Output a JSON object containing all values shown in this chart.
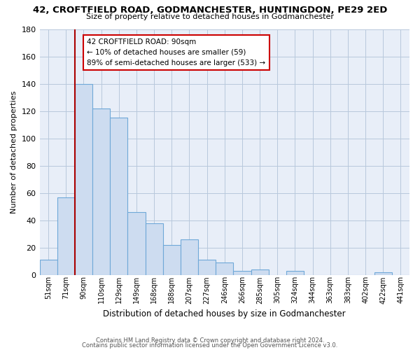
{
  "title": "42, CROFTFIELD ROAD, GODMANCHESTER, HUNTINGDON, PE29 2ED",
  "subtitle": "Size of property relative to detached houses in Godmanchester",
  "xlabel": "Distribution of detached houses by size in Godmanchester",
  "ylabel": "Number of detached properties",
  "bar_labels": [
    "51sqm",
    "71sqm",
    "90sqm",
    "110sqm",
    "129sqm",
    "149sqm",
    "168sqm",
    "188sqm",
    "207sqm",
    "227sqm",
    "246sqm",
    "266sqm",
    "285sqm",
    "305sqm",
    "324sqm",
    "344sqm",
    "363sqm",
    "383sqm",
    "402sqm",
    "422sqm",
    "441sqm"
  ],
  "bar_values": [
    11,
    57,
    140,
    122,
    115,
    46,
    38,
    22,
    26,
    11,
    9,
    3,
    4,
    0,
    3,
    0,
    0,
    0,
    0,
    2,
    0
  ],
  "bar_color": "#cddcf0",
  "bar_edge_color": "#6fa8d8",
  "highlight_index": 2,
  "highlight_line_color": "#aa0000",
  "ylim": [
    0,
    180
  ],
  "yticks": [
    0,
    20,
    40,
    60,
    80,
    100,
    120,
    140,
    160,
    180
  ],
  "annotation_title": "42 CROFTFIELD ROAD: 90sqm",
  "annotation_line1": "← 10% of detached houses are smaller (59)",
  "annotation_line2": "89% of semi-detached houses are larger (533) →",
  "annotation_box_color": "#ffffff",
  "annotation_box_edge": "#cc0000",
  "footer_line1": "Contains HM Land Registry data © Crown copyright and database right 2024.",
  "footer_line2": "Contains public sector information licensed under the Open Government Licence v3.0.",
  "background_color": "#ffffff",
  "plot_bg_color": "#e8eef8",
  "grid_color": "#b8c8dc"
}
